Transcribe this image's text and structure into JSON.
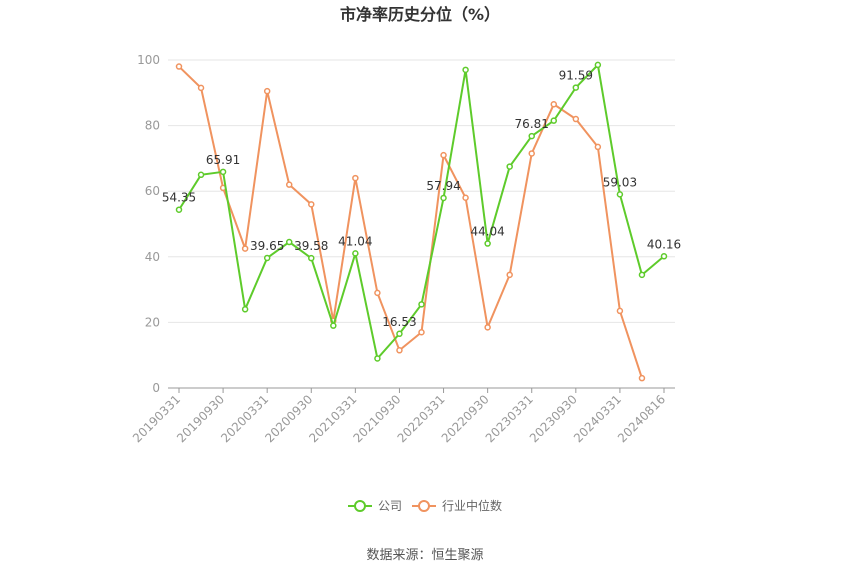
{
  "chart_data": {
    "type": "line",
    "title": "市净率历史分位（%）",
    "source": "数据来源：恒生聚源",
    "ylim": [
      0,
      100
    ],
    "yticks": [
      0,
      20,
      40,
      60,
      80,
      100
    ],
    "x": [
      "20190331",
      "20190630",
      "20190930",
      "20191231",
      "20200331",
      "20200630",
      "20200930",
      "20201231",
      "20210331",
      "20210630",
      "20210930",
      "20211231",
      "20220331",
      "20220630",
      "20220930",
      "20221231",
      "20230331",
      "20230630",
      "20230930",
      "20231231",
      "20240331",
      "20240630",
      "20240816"
    ],
    "xtick_labels": [
      "20190331",
      "20190930",
      "20200331",
      "20200930",
      "20210331",
      "20210930",
      "20220331",
      "20220930",
      "20230331",
      "20230930",
      "20240331",
      "20240816"
    ],
    "series": [
      {
        "name": "公司",
        "color": "#5ecb2b",
        "values": [
          54.35,
          65,
          65.91,
          24,
          39.65,
          44.5,
          39.58,
          19,
          41.04,
          9,
          16.53,
          25.5,
          57.94,
          97,
          44.04,
          67.5,
          76.81,
          81.5,
          91.59,
          98.5,
          59.03,
          34.5,
          40.16
        ],
        "labels": {
          "0": "54.35",
          "2": "65.91",
          "4": "39.65",
          "6": "39.58",
          "8": "41.04",
          "10": "16.53",
          "12": "57.94",
          "14": "44.04",
          "16": "76.81",
          "18": "91.59",
          "20": "59.03",
          "22": "40.16"
        }
      },
      {
        "name": "行业中位数",
        "color": "#f0935f",
        "values": [
          98,
          91.5,
          61,
          42.5,
          90.5,
          62,
          56,
          20.5,
          64,
          29,
          11.5,
          17,
          71,
          58,
          18.5,
          34.5,
          71.5,
          86.5,
          82,
          73.5,
          23.5,
          3,
          null
        ]
      }
    ],
    "legend_position": "bottom"
  }
}
